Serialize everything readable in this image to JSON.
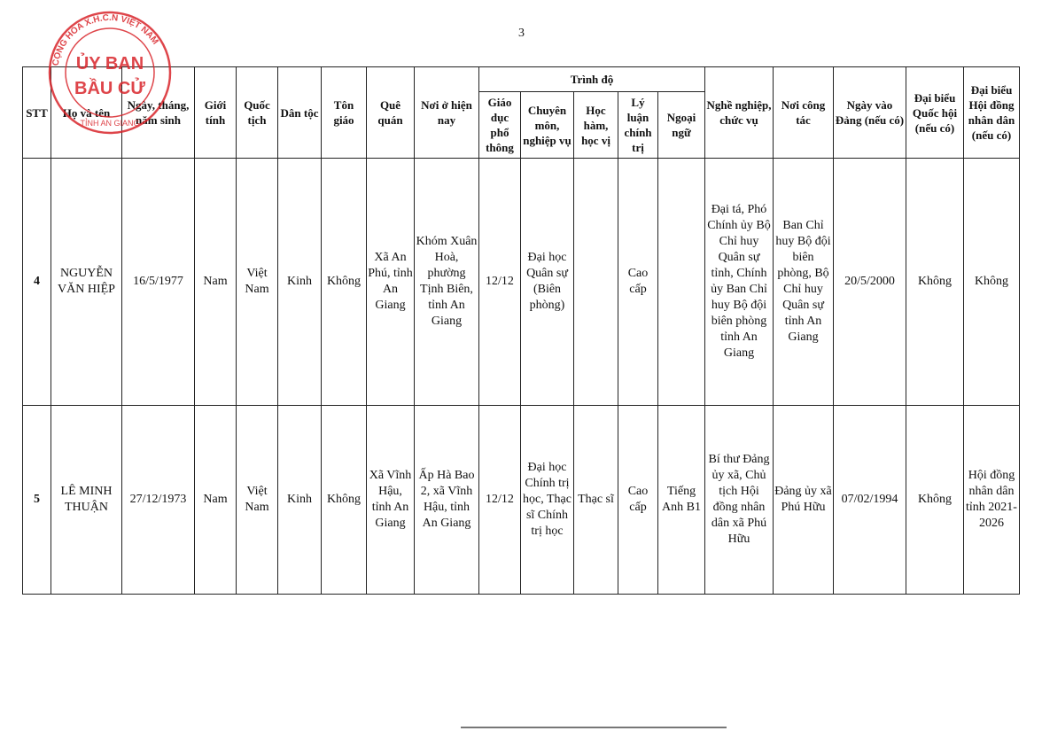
{
  "page_number": "3",
  "seal": {
    "text_ring": "CỘNG HÒA X.H.C.N VIỆT NAM",
    "title1": "ỦY BAN",
    "title2": "BẦU CỬ",
    "bottom": "TỈNH AN GIANG",
    "color": "#d9252b"
  },
  "headers": {
    "stt": "STT",
    "name": "Họ và tên",
    "dob": "Ngày, tháng, năm sinh",
    "gender": "Giới tính",
    "nationality": "Quốc tịch",
    "ethnicity": "Dân tộc",
    "religion": "Tôn giáo",
    "hometown": "Quê quán",
    "residence": "Nơi ở hiện nay",
    "trinh_do": "Trình độ",
    "general_edu": "Giáo dục phổ thông",
    "specialty": "Chuyên môn, nghiệp vụ",
    "degree": "Học hàm, học vị",
    "politics": "Lý luận chính trị",
    "language": "Ngoại ngữ",
    "occupation": "Nghề nghiệp, chức vụ",
    "workplace": "Nơi công tác",
    "party_date": "Ngày vào Đảng (nếu có)",
    "na_delegate": "Đại biểu Quốc hội (nếu có)",
    "pc_delegate": "Đại biểu Hội đồng nhân dân (nếu có)"
  },
  "rows": [
    [
      "4",
      "NGUYỄN VĂN HIỆP",
      "16/5/1977",
      "Nam",
      "Việt Nam",
      "Kinh",
      "Không",
      "Xã An Phú, tỉnh An Giang",
      "Khóm Xuân Hoà, phường Tịnh Biên, tỉnh An Giang",
      "12/12",
      "Đại học Quân sự (Biên phòng)",
      "",
      "Cao cấp",
      "",
      "Đại tá, Phó Chính ủy Bộ Chỉ huy Quân sự tỉnh, Chính ủy Ban Chỉ huy Bộ đội biên phòng tỉnh An Giang",
      "Ban Chỉ huy Bộ đội biên phòng, Bộ Chỉ huy Quân sự tỉnh An Giang",
      "20/5/2000",
      "Không",
      "Không"
    ],
    [
      "5",
      "LÊ MINH THUẬN",
      "27/12/1973",
      "Nam",
      "Việt Nam",
      "Kinh",
      "Không",
      "Xã Vĩnh Hậu, tỉnh An Giang",
      "Ấp Hà Bao 2, xã Vĩnh Hậu, tỉnh An Giang",
      "12/12",
      "Đại học Chính trị học, Thạc sĩ Chính trị học",
      "Thạc sĩ",
      "Cao cấp",
      "Tiếng Anh B1",
      "Bí thư Đảng ủy xã, Chủ tịch Hội đồng nhân dân xã Phú Hữu",
      "Đảng ủy xã Phú Hữu",
      "07/02/1994",
      "Không",
      "Hội đồng nhân dân tỉnh 2021-2026"
    ]
  ]
}
